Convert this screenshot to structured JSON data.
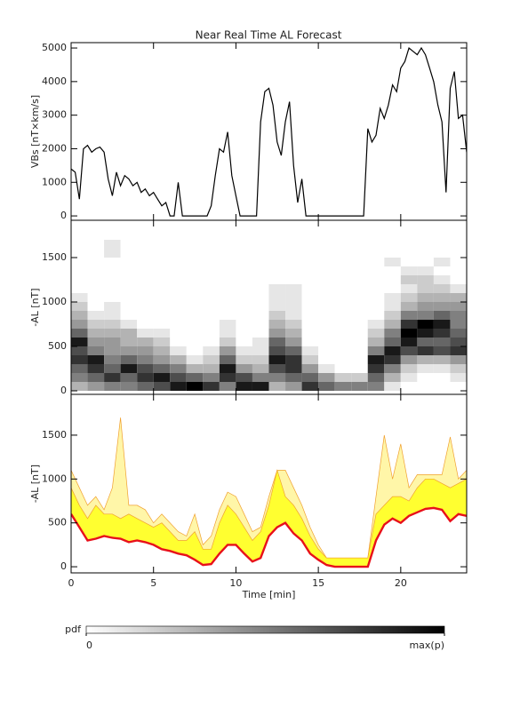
{
  "chart_data": [
    {
      "type": "line",
      "title": "Near Real Time AL Forecast",
      "ylabel": "VBs [nT×km/s]",
      "ylim": [
        -130,
        5160
      ],
      "yticks": [
        0,
        1000,
        2000,
        3000,
        4000,
        5000
      ],
      "color": "#000000",
      "x": [
        0,
        0.25,
        0.5,
        0.75,
        1,
        1.25,
        1.5,
        1.75,
        2,
        2.25,
        2.5,
        2.75,
        3,
        3.25,
        3.5,
        3.75,
        4,
        4.25,
        4.5,
        4.75,
        5,
        5.25,
        5.5,
        5.75,
        6,
        6.25,
        6.5,
        6.75,
        7,
        7.25,
        7.5,
        7.75,
        8,
        8.25,
        8.5,
        8.75,
        9,
        9.25,
        9.5,
        9.75,
        10,
        10.25,
        10.5,
        10.75,
        11,
        11.25,
        11.5,
        11.75,
        12,
        12.25,
        12.5,
        12.75,
        13,
        13.25,
        13.5,
        13.75,
        14,
        14.25,
        14.5,
        14.75,
        15,
        15.25,
        15.5,
        15.75,
        16,
        16.25,
        16.5,
        16.75,
        17,
        17.25,
        17.5,
        17.75,
        18,
        18.25,
        18.5,
        18.75,
        19,
        19.25,
        19.5,
        19.75,
        20,
        20.25,
        20.5,
        20.75,
        21,
        21.25,
        21.5,
        21.75,
        22,
        22.25,
        22.5,
        22.75,
        23,
        23.25,
        23.5,
        23.75,
        24
      ],
      "values": [
        1400,
        1300,
        500,
        2000,
        2100,
        1900,
        2000,
        2050,
        1900,
        1100,
        600,
        1300,
        900,
        1200,
        1100,
        900,
        1000,
        700,
        800,
        600,
        700,
        500,
        300,
        400,
        0,
        0,
        1000,
        0,
        0,
        0,
        0,
        0,
        0,
        0,
        300,
        1200,
        2000,
        1900,
        2500,
        1200,
        600,
        0,
        0,
        0,
        0,
        0,
        2800,
        3700,
        3800,
        3300,
        2200,
        1800,
        2800,
        3400,
        1500,
        400,
        1100,
        0,
        0,
        0,
        0,
        0,
        0,
        0,
        0,
        0,
        0,
        0,
        0,
        0,
        0,
        0,
        2600,
        2200,
        2400,
        3200,
        2900,
        3300,
        3900,
        3700,
        4400,
        4600,
        5000,
        4900,
        4800,
        5000,
        4800,
        4400,
        4000,
        3300,
        2800,
        700,
        3800,
        4300,
        2900,
        3000,
        1900
      ]
    },
    {
      "type": "heatmap",
      "ylabel": "-AL [nT]",
      "ylim": [
        -40,
        1920
      ],
      "yticks": [
        0,
        500,
        1000,
        1500
      ],
      "x_bins": [
        0,
        1,
        2,
        3,
        4,
        5,
        6,
        7,
        8,
        9,
        10,
        11,
        12,
        13,
        14,
        15,
        16,
        17,
        18,
        19,
        20,
        21,
        22,
        23,
        24
      ],
      "y_bins": [
        0,
        100,
        200,
        300,
        400,
        500,
        600,
        700,
        800,
        900,
        1000,
        1100,
        1200,
        1300,
        1400,
        1500,
        1600,
        1700
      ],
      "z": [
        [
          0.3,
          0.5,
          0.6,
          0.8,
          0.7,
          0.9,
          0.6,
          0.4,
          0.3,
          0.2,
          0.1,
          0,
          0,
          0,
          0,
          0,
          0
        ],
        [
          0.4,
          0.6,
          0.8,
          0.9,
          0.5,
          0.4,
          0.3,
          0.2,
          0.1,
          0,
          0,
          0,
          0,
          0,
          0,
          0,
          0
        ],
        [
          0.5,
          0.8,
          0.6,
          0.5,
          0.4,
          0.4,
          0.3,
          0.2,
          0.1,
          0.1,
          0,
          0,
          0,
          0,
          0,
          0.1,
          0.1
        ],
        [
          0.5,
          0.6,
          0.9,
          0.6,
          0.4,
          0.3,
          0.3,
          0.1,
          0,
          0,
          0,
          0,
          0,
          0,
          0,
          0,
          0
        ],
        [
          0.6,
          0.8,
          0.7,
          0.5,
          0.4,
          0.3,
          0.1,
          0,
          0,
          0,
          0,
          0,
          0,
          0,
          0,
          0,
          0
        ],
        [
          0.7,
          0.9,
          0.6,
          0.4,
          0.3,
          0.2,
          0.1,
          0,
          0,
          0,
          0,
          0,
          0,
          0,
          0,
          0,
          0
        ],
        [
          0.9,
          0.7,
          0.5,
          0.3,
          0.1,
          0,
          0,
          0,
          0,
          0,
          0,
          0,
          0,
          0,
          0,
          0,
          0
        ],
        [
          1,
          0.6,
          0.3,
          0.1,
          0,
          0,
          0,
          0,
          0,
          0,
          0,
          0,
          0,
          0,
          0,
          0,
          0
        ],
        [
          0.8,
          0.5,
          0.3,
          0.2,
          0.1,
          0,
          0,
          0,
          0,
          0,
          0,
          0,
          0,
          0,
          0,
          0,
          0
        ],
        [
          0.5,
          0.8,
          0.9,
          0.6,
          0.4,
          0.2,
          0.1,
          0.1,
          0,
          0,
          0,
          0,
          0,
          0,
          0,
          0,
          0
        ],
        [
          0.9,
          0.7,
          0.4,
          0.2,
          0.1,
          0,
          0,
          0,
          0,
          0,
          0,
          0,
          0,
          0,
          0,
          0,
          0
        ],
        [
          0.9,
          0.5,
          0.3,
          0.2,
          0.1,
          0.1,
          0,
          0,
          0,
          0,
          0,
          0,
          0,
          0,
          0,
          0,
          0
        ],
        [
          0.3,
          0.5,
          0.7,
          0.9,
          0.7,
          0.6,
          0.4,
          0.3,
          0.2,
          0.1,
          0.1,
          0.1,
          0,
          0,
          0,
          0,
          0
        ],
        [
          0.4,
          0.6,
          0.8,
          0.8,
          0.6,
          0.4,
          0.3,
          0.2,
          0.1,
          0.1,
          0.1,
          0.1,
          0,
          0,
          0,
          0,
          0
        ],
        [
          0.8,
          0.6,
          0.4,
          0.2,
          0.1,
          0,
          0,
          0,
          0,
          0,
          0,
          0,
          0,
          0,
          0,
          0,
          0
        ],
        [
          0.6,
          0.4,
          0.1,
          0,
          0,
          0,
          0,
          0,
          0,
          0,
          0,
          0,
          0,
          0,
          0,
          0,
          0
        ],
        [
          0.5,
          0.2,
          0,
          0,
          0,
          0,
          0,
          0,
          0,
          0,
          0,
          0,
          0,
          0,
          0,
          0,
          0
        ],
        [
          0.5,
          0.2,
          0,
          0,
          0,
          0,
          0,
          0,
          0,
          0,
          0,
          0,
          0,
          0,
          0,
          0,
          0
        ],
        [
          0.5,
          0.6,
          0.8,
          0.9,
          0.5,
          0.3,
          0.2,
          0.1,
          0,
          0,
          0,
          0,
          0,
          0,
          0,
          0,
          0
        ],
        [
          0.1,
          0.3,
          0.5,
          0.8,
          0.9,
          0.6,
          0.5,
          0.3,
          0.2,
          0.1,
          0.1,
          0,
          0,
          0,
          0.1,
          0,
          0
        ],
        [
          0,
          0.1,
          0.2,
          0.4,
          0.7,
          0.9,
          1,
          0.8,
          0.5,
          0.3,
          0.2,
          0.1,
          0.2,
          0.1,
          0,
          0,
          0
        ],
        [
          0,
          0,
          0.1,
          0.3,
          0.8,
          0.6,
          0.9,
          1,
          0.5,
          0.4,
          0.3,
          0.2,
          0.2,
          0.1,
          0,
          0,
          0
        ],
        [
          0,
          0,
          0.1,
          0.3,
          0.7,
          0.6,
          0.8,
          0.9,
          0.6,
          0.4,
          0.3,
          0.2,
          0.1,
          0,
          0.1,
          0,
          0
        ],
        [
          0,
          0.1,
          0.2,
          0.4,
          0.8,
          0.7,
          0.6,
          0.5,
          0.5,
          0.4,
          0.3,
          0.1,
          0,
          0,
          0,
          0,
          0
        ]
      ],
      "colorbar": {
        "label": "pdf",
        "ticks": [
          0,
          {
            "value": 1,
            "label": "max(p)"
          }
        ]
      }
    },
    {
      "type": "band",
      "ylabel": "-AL [nT]",
      "xlabel": "Time [min]",
      "xlim": [
        0,
        24
      ],
      "xticks": [
        0,
        5,
        10,
        15,
        20
      ],
      "ylim": [
        -70,
        1965
      ],
      "yticks": [
        0,
        500,
        1000,
        1500
      ],
      "x": [
        0,
        0.5,
        1,
        1.5,
        2,
        2.5,
        3,
        3.5,
        4,
        4.5,
        5,
        5.5,
        6,
        6.5,
        7,
        7.5,
        8,
        8.5,
        9,
        9.5,
        10,
        10.5,
        11,
        11.5,
        12,
        12.5,
        13,
        13.5,
        14,
        14.5,
        15,
        15.5,
        16,
        16.5,
        17,
        17.5,
        18,
        18.5,
        19,
        19.5,
        20,
        20.5,
        21,
        21.5,
        22,
        22.5,
        23,
        23.5,
        24
      ],
      "series": [
        {
          "color": "#fff6a8",
          "values": [
            1100,
            900,
            700,
            800,
            650,
            900,
            1700,
            700,
            700,
            650,
            500,
            600,
            500,
            400,
            350,
            600,
            250,
            350,
            650,
            850,
            800,
            600,
            400,
            450,
            800,
            1100,
            1100,
            900,
            700,
            450,
            250,
            100,
            100,
            100,
            100,
            100,
            100,
            800,
            1500,
            1000,
            1400,
            900,
            1050,
            1050,
            1050,
            1050,
            1480,
            1000,
            1100
          ]
        },
        {
          "color": "#ffff30",
          "values": [
            900,
            700,
            550,
            700,
            600,
            600,
            550,
            600,
            550,
            500,
            450,
            500,
            400,
            300,
            300,
            400,
            200,
            200,
            500,
            700,
            600,
            450,
            300,
            400,
            700,
            1100,
            800,
            700,
            550,
            350,
            200,
            100,
            100,
            100,
            100,
            100,
            100,
            600,
            700,
            800,
            800,
            750,
            900,
            1000,
            1000,
            950,
            900,
            950,
            1000
          ]
        },
        {
          "color": "#e8101a",
          "values": [
            600,
            450,
            300,
            320,
            350,
            330,
            320,
            280,
            300,
            280,
            250,
            200,
            180,
            150,
            130,
            80,
            20,
            30,
            150,
            250,
            250,
            150,
            60,
            100,
            350,
            450,
            500,
            380,
            300,
            150,
            80,
            20,
            0,
            0,
            0,
            0,
            0,
            300,
            480,
            550,
            500,
            580,
            620,
            660,
            670,
            650,
            520,
            600,
            580
          ]
        }
      ]
    }
  ]
}
